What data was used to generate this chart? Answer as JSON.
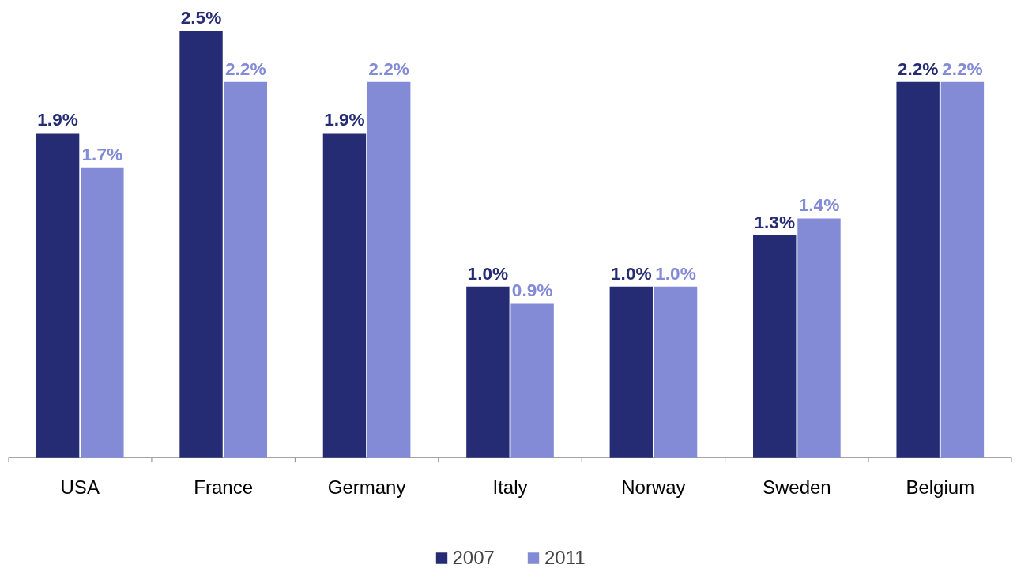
{
  "chart_data": {
    "type": "bar",
    "categories": [
      "USA",
      "France",
      "Germany",
      "Italy",
      "Norway",
      "Sweden",
      "Belgium"
    ],
    "series": [
      {
        "name": "2007",
        "color": "#262c74",
        "values": [
          1.9,
          2.5,
          1.9,
          1.0,
          1.0,
          1.3,
          2.2
        ],
        "value_labels": [
          "1.9%",
          "2.5%",
          "1.9%",
          "1.0%",
          "1.0%",
          "1.3%",
          "2.2%"
        ]
      },
      {
        "name": "2011",
        "color": "#838bd7",
        "values": [
          1.7,
          2.2,
          2.2,
          0.9,
          1.0,
          1.4,
          2.2
        ],
        "value_labels": [
          "1.7%",
          "2.2%",
          "2.2%",
          "0.9%",
          "1.0%",
          "1.4%",
          "2.2%"
        ]
      }
    ],
    "legend": "bottom",
    "grid": false
  }
}
